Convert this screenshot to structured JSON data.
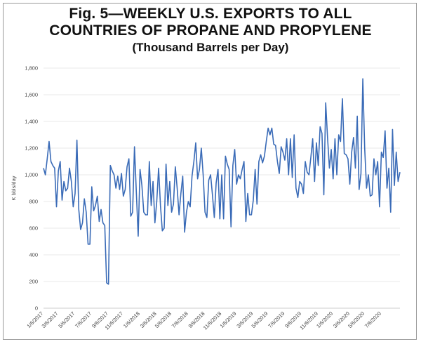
{
  "chart_data": {
    "type": "line",
    "title": "Fig. 5—WEEKLY U.S. EXPORTS TO ALL COUNTRIES OF PROPANE AND PROPYLENE",
    "title_lines": [
      "Fig. 5—WEEKLY U.S. EXPORTS TO ALL",
      "COUNTRIES OF PROPANE AND PROPYLENE"
    ],
    "subtitle": "(Thousand Barrels per Day)",
    "xlabel": "",
    "ylabel": "K bbls/day",
    "ylim": [
      0,
      1800
    ],
    "yticks": [
      0,
      200,
      400,
      600,
      800,
      1000,
      1200,
      1400,
      1600,
      1800
    ],
    "ytick_labels": [
      "0",
      "200",
      "400",
      "600",
      "800",
      "1,000",
      "1,200",
      "1,400",
      "1,600",
      "1,800"
    ],
    "grid": true,
    "color": "#3a6bb7",
    "x_tick_labels": [
      "1/6/2017",
      "3/6/2017",
      "5/6/2017",
      "7/6/2017",
      "9/6/2017",
      "11/6/2017",
      "1/6/2018",
      "3/6/2018",
      "5/6/2018",
      "7/6/2018",
      "9/6/2018",
      "11/6/2018",
      "1/6/2019",
      "3/6/2019",
      "5/6/2019",
      "7/6/2019",
      "9/6/2019",
      "11/6/2019",
      "1/6/2020",
      "3/6/2020",
      "5/6/2020",
      "7/6/2020"
    ],
    "x_tick_week_index": [
      0,
      8,
      17,
      26,
      35,
      43,
      52,
      61,
      69,
      78,
      87,
      96,
      104,
      113,
      121,
      130,
      139,
      148,
      156,
      165,
      173,
      182
    ],
    "series": [
      {
        "name": "Weekly exports",
        "values": [
          1050,
          1000,
          1120,
          1250,
          1100,
          1070,
          1050,
          760,
          1030,
          1100,
          810,
          950,
          880,
          900,
          1050,
          950,
          760,
          860,
          1260,
          740,
          590,
          640,
          820,
          720,
          480,
          480,
          910,
          730,
          770,
          840,
          650,
          740,
          640,
          620,
          190,
          180,
          1070,
          1030,
          1000,
          900,
          990,
          890,
          1010,
          840,
          890,
          1060,
          1120,
          690,
          720,
          1210,
          870,
          540,
          1040,
          920,
          720,
          700,
          700,
          1100,
          770,
          950,
          640,
          800,
          1050,
          770,
          580,
          600,
          1080,
          770,
          950,
          720,
          780,
          1060,
          900,
          700,
          860,
          990,
          570,
          720,
          800,
          760,
          990,
          1100,
          1240,
          970,
          1040,
          1200,
          1000,
          720,
          680,
          960,
          1000,
          850,
          680,
          940,
          1040,
          670,
          1000,
          670,
          1140,
          1080,
          1040,
          610,
          1070,
          1190,
          930,
          1000,
          970,
          1040,
          1100,
          650,
          860,
          700,
          700,
          810,
          1040,
          780,
          1100,
          1150,
          1090,
          1140,
          1250,
          1350,
          1300,
          1350,
          1230,
          1220,
          1100,
          1010,
          1210,
          1170,
          1110,
          1270,
          1000,
          1270,
          980,
          1300,
          900,
          830,
          950,
          930,
          860,
          1100,
          1020,
          1000,
          1130,
          1270,
          950,
          1240,
          1070,
          1360,
          1310,
          850,
          1540,
          1280,
          1050,
          1190,
          970,
          1270,
          1000,
          1300,
          1250,
          1570,
          1160,
          1150,
          1120,
          930,
          1170,
          1280,
          1050,
          1440,
          890,
          1010,
          1720,
          1200,
          900,
          1000,
          840,
          850,
          1120,
          1000,
          1100,
          760,
          1170,
          1130,
          1330,
          900,
          1050,
          720,
          1340,
          920,
          1170,
          950,
          1020
        ]
      }
    ]
  }
}
